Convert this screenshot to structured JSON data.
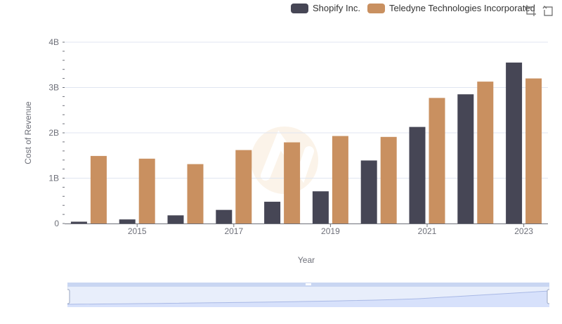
{
  "legend": {
    "items": [
      {
        "label": "Shopify Inc.",
        "color": "#464655"
      },
      {
        "label": "Teledyne Technologies Incorporated",
        "color": "#c99060"
      }
    ]
  },
  "toolbar": {
    "icons": [
      "zoom-icon",
      "restore-icon"
    ]
  },
  "chart_data": {
    "type": "bar",
    "title": "",
    "xlabel": "Year",
    "ylabel": "Cost of Revenue",
    "categories": [
      "2014",
      "2015",
      "2016",
      "2017",
      "2018",
      "2019",
      "2020",
      "2021",
      "2022",
      "2023"
    ],
    "x_tick_labels": [
      "2015",
      "2017",
      "2019",
      "2021",
      "2023"
    ],
    "y_tick_labels": [
      "0",
      "1B",
      "2B",
      "3B",
      "4B"
    ],
    "ylim": [
      0,
      4000000000
    ],
    "series": [
      {
        "name": "Shopify Inc.",
        "color": "#464655",
        "values": [
          40000000,
          90000000,
          180000000,
          300000000,
          480000000,
          710000000,
          1390000000,
          2130000000,
          2850000000,
          3550000000
        ]
      },
      {
        "name": "Teledyne Technologies Incorporated",
        "color": "#c99060",
        "values": [
          1490000000,
          1430000000,
          1310000000,
          1620000000,
          1790000000,
          1930000000,
          1910000000,
          2770000000,
          3130000000,
          3200000000
        ]
      }
    ],
    "grid": true,
    "legend": "top-right",
    "data_zoom": {
      "start": 0,
      "end": 100
    }
  }
}
